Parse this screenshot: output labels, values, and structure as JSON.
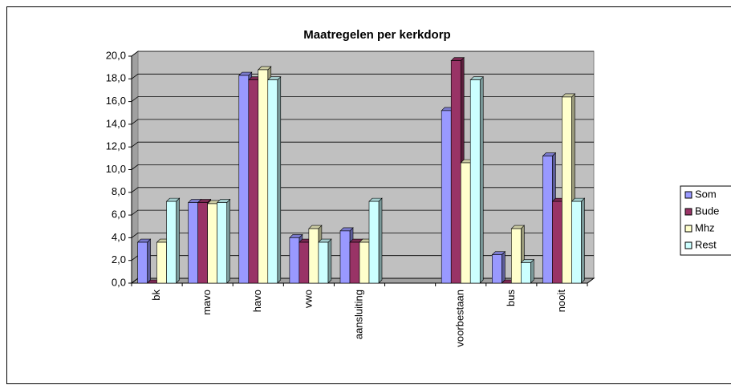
{
  "chart_data": {
    "type": "bar3d",
    "title": "Maatregelen per kerkdorp",
    "categories": [
      "bk",
      "mavo",
      "havo",
      "vwo",
      "aansluiting",
      null,
      "voorbestaan",
      "bus",
      "nooit"
    ],
    "series": [
      {
        "name": "Som",
        "color": "#9999ff",
        "values": [
          3.6,
          7.1,
          18.3,
          4.0,
          4.6,
          null,
          15.2,
          2.5,
          11.2
        ]
      },
      {
        "name": "Bude",
        "color": "#993366",
        "values": [
          0,
          7.1,
          17.9,
          3.6,
          3.6,
          null,
          19.6,
          0,
          7.2
        ]
      },
      {
        "name": "Mhz",
        "color": "#ffffcc",
        "values": [
          3.6,
          7.0,
          18.8,
          4.8,
          3.6,
          null,
          10.6,
          4.8,
          16.4
        ]
      },
      {
        "name": "Rest",
        "color": "#ccffff",
        "values": [
          7.2,
          7.1,
          17.9,
          3.6,
          7.2,
          null,
          17.9,
          1.8,
          7.2
        ]
      }
    ],
    "ylim": [
      0,
      20
    ],
    "yticks": [
      {
        "value": 0,
        "label": "0,0"
      },
      {
        "value": 2,
        "label": "2,0"
      },
      {
        "value": 4,
        "label": "4,0"
      },
      {
        "value": 6,
        "label": "6,0"
      },
      {
        "value": 8,
        "label": "8,0"
      },
      {
        "value": 10,
        "label": "10,0"
      },
      {
        "value": 12,
        "label": "12,0"
      },
      {
        "value": 14,
        "label": "14,0"
      },
      {
        "value": 16,
        "label": "16,0"
      },
      {
        "value": 18,
        "label": "18,0"
      },
      {
        "value": 20,
        "label": "20,0"
      }
    ],
    "grid": true,
    "legend": "right"
  }
}
